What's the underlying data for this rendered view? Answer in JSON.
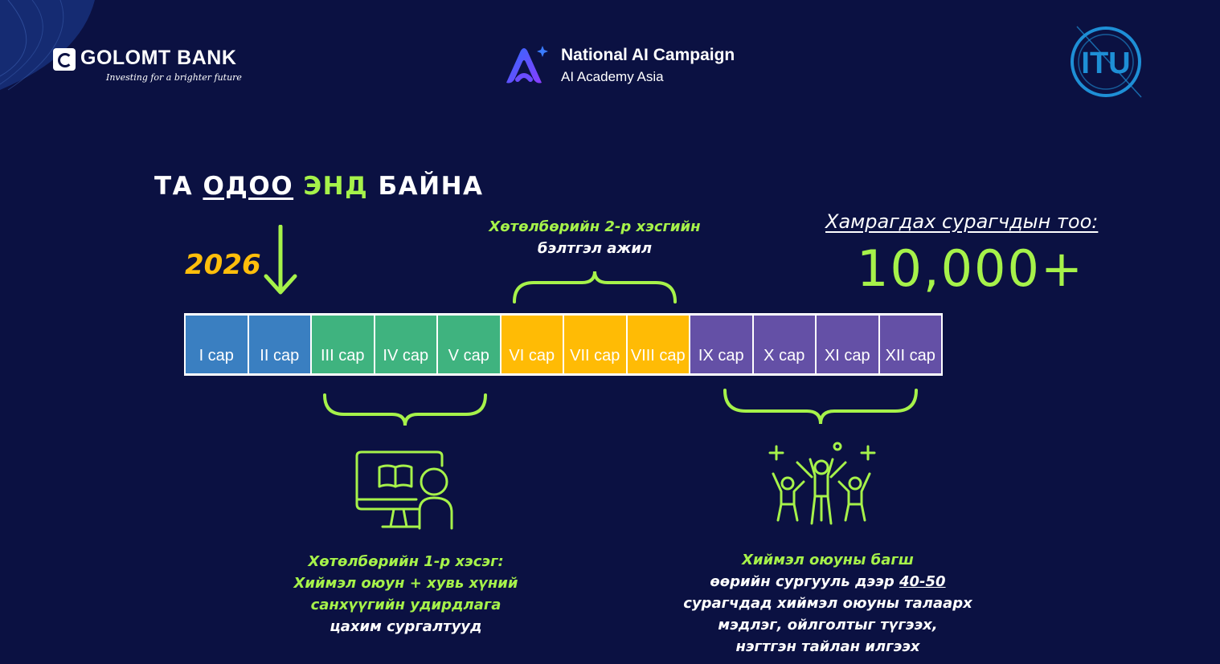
{
  "colors": {
    "background": "#0b1142",
    "accent_green": "#a6f24a",
    "accent_yellow": "#ffbe0b",
    "grade_blue": "#3a7fc1",
    "grade_green": "#3fb37f",
    "grade_yellow": "#ffbb05",
    "grade_purple": "#6450a6"
  },
  "header": {
    "golomt_name": "GOLOMT BANK",
    "golomt_tagline": "Investing for a brighter future",
    "campaign_title": "National AI Campaign",
    "campaign_subtitle": "AI Academy Asia",
    "itu_logo": "ITU"
  },
  "heading": {
    "w1": "ТА",
    "w2": "ОДОО",
    "w3": "ЭНД",
    "w4": "БАЙНА"
  },
  "year": "2026",
  "part2": {
    "title": "Хөтөлбөрийн 2-р хэсгийн",
    "subtitle": "бэлтгэл ажил"
  },
  "coverage": {
    "label": "Хамрагдах сурагчдын тоо:",
    "value": "10,000+"
  },
  "grades": [
    {
      "label": "I сар",
      "group": "blue"
    },
    {
      "label": "II сар",
      "group": "blue"
    },
    {
      "label": "III сар",
      "group": "green"
    },
    {
      "label": "IV сар",
      "group": "green"
    },
    {
      "label": "V сар",
      "group": "green"
    },
    {
      "label": "VI сар",
      "group": "yellow"
    },
    {
      "label": "VII сар",
      "group": "yellow"
    },
    {
      "label": "VIII сар",
      "group": "yellow"
    },
    {
      "label": "IX сар",
      "group": "purple"
    },
    {
      "label": "X сар",
      "group": "purple"
    },
    {
      "label": "XI сар",
      "group": "purple"
    },
    {
      "label": "XII сар",
      "group": "purple"
    }
  ],
  "part1": {
    "line1": "Хөтөлбөрийн 1-р хэсэг:",
    "line2": "Хиймэл оюун + хувь хүний",
    "line3": "санхүүгийн удирдлага",
    "line4": "цахим сургалтууд"
  },
  "teacher": {
    "line1": "Хиймэл оюуны багш",
    "line2a": "өөрийн сургууль дээр ",
    "line2b": "40-50",
    "line3": "сурагчдад хиймэл оюуны талаарх",
    "line4": "мэдлэг, ойлголтыг түгээх,",
    "line5": "нэгтгэн тайлан илгээх"
  },
  "icons": {
    "teaching": "online-teaching-icon",
    "students": "celebrating-students-icon",
    "arrow": "arrow-down-icon"
  }
}
